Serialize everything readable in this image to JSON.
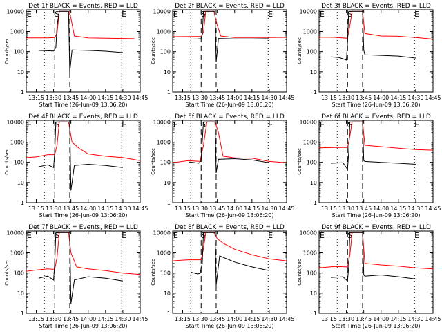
{
  "chart_data": [
    {
      "type": "line",
      "title": "Det 1f BLACK = Events, RED = LLD",
      "ylabel": "Counts/sec",
      "xlabel": "Start Time (26-Jun-09 13:06:20)",
      "x_ticks": [
        "13:15",
        "13:30",
        "13:45",
        "14:00",
        "14:15",
        "14:30",
        "14:45"
      ],
      "y_ticks": [
        "1",
        "10",
        "100",
        "1000",
        "10000"
      ],
      "y_scale": "log",
      "ylim": [
        1,
        12000
      ],
      "xlim": [
        "13:06:20",
        "14:45:00"
      ],
      "region_labels": [
        "E",
        "S",
        "E"
      ],
      "series": [
        {
          "color": "#ff0000",
          "x": [
            "13:06",
            "13:25",
            "13:31",
            "13:33",
            "13:35",
            "13:38",
            "13:42",
            "13:44",
            "13:48",
            "14:00",
            "14:15",
            "14:30",
            "14:40"
          ],
          "values": [
            480,
            480,
            500,
            800,
            10000,
            10000,
            10000,
            9000,
            600,
            480,
            460,
            450,
            440
          ]
        },
        {
          "color": "#000000",
          "x": [
            "13:17",
            "13:24",
            "13:30",
            "13:32",
            "13:33",
            "13:35",
            "13:43",
            "13:44",
            "13:46",
            "14:00",
            "14:15",
            "14:30"
          ],
          "values": [
            115,
            110,
            108,
            160,
            2000,
            10000,
            10000,
            9,
            120,
            115,
            105,
            90
          ]
        }
      ]
    },
    {
      "type": "line",
      "title": "Det 2f BLACK = Events, RED = LLD",
      "ylabel": "Counts/sec",
      "xlabel": "Start Time (26-Jun-09 13:06:20)",
      "x_ticks": [
        "13:15",
        "13:30",
        "13:45",
        "14:00",
        "14:15",
        "14:30",
        "14:45"
      ],
      "y_ticks": [
        "1",
        "10",
        "100",
        "1000",
        "10000"
      ],
      "y_scale": "log",
      "ylim": [
        1,
        12000
      ],
      "xlim": [
        "13:06:20",
        "14:45:00"
      ],
      "region_labels": [
        "E",
        "S",
        "E"
      ],
      "series": [
        {
          "color": "#ff0000",
          "x": [
            "13:06",
            "13:25",
            "13:31",
            "13:33",
            "13:35",
            "13:38",
            "13:42",
            "13:45",
            "13:48",
            "14:00",
            "14:15",
            "14:30",
            "14:45"
          ],
          "values": [
            550,
            560,
            570,
            900,
            10000,
            10000,
            10000,
            2000,
            600,
            500,
            500,
            500,
            510
          ]
        },
        {
          "color": "#000000",
          "x": [
            "13:22",
            "13:28",
            "13:31",
            "13:32",
            "13:33",
            "13:43",
            "13:44",
            "13:46",
            "14:00",
            "14:15",
            "14:30"
          ],
          "values": [
            420,
            430,
            440,
            700,
            10000,
            10000,
            30,
            450,
            430,
            430,
            440
          ]
        }
      ]
    },
    {
      "type": "line",
      "title": "Det 3f BLACK = Events, RED = LLD",
      "ylabel": "Counts/sec",
      "xlabel": "Start Time (26-Jun-09 13:06:20)",
      "x_ticks": [
        "13:15",
        "13:30",
        "13:45",
        "14:00",
        "14:15",
        "14:30",
        "14:45"
      ],
      "y_ticks": [
        "1",
        "10",
        "100",
        "1000",
        "10000"
      ],
      "y_scale": "log",
      "ylim": [
        1,
        12000
      ],
      "xlim": [
        "13:06:20",
        "14:45:00"
      ],
      "region_labels": [
        "E",
        "S",
        "E"
      ],
      "series": [
        {
          "color": "#ff0000",
          "x": [
            "13:06",
            "13:20",
            "13:31",
            "13:33",
            "13:35",
            "13:42",
            "13:44",
            "13:46",
            "14:00",
            "14:15",
            "14:30",
            "14:45"
          ],
          "values": [
            520,
            510,
            460,
            2000,
            10000,
            10000,
            10000,
            800,
            600,
            580,
            500,
            420
          ]
        },
        {
          "color": "#000000",
          "x": [
            "13:17",
            "13:24",
            "13:30",
            "13:31",
            "13:32",
            "13:44",
            "13:45",
            "13:46",
            "14:00",
            "14:15",
            "14:30"
          ],
          "values": [
            55,
            50,
            38,
            300,
            10000,
            10000,
            120,
            70,
            65,
            60,
            48
          ]
        }
      ]
    },
    {
      "type": "line",
      "title": "Det 4f BLACK = Events, RED = LLD",
      "ylabel": "Counts/sec",
      "xlabel": "Start Time (26-Jun-09 13:06:20)",
      "x_ticks": [
        "13:15",
        "13:30",
        "13:45",
        "14:00",
        "14:15",
        "14:30",
        "14:45"
      ],
      "y_ticks": [
        "1",
        "10",
        "100",
        "1000",
        "10000"
      ],
      "y_scale": "log",
      "ylim": [
        1,
        12000
      ],
      "xlim": [
        "13:06:20",
        "14:45:00"
      ],
      "region_labels": [
        "E",
        "S",
        "E"
      ],
      "series": [
        {
          "color": "#ff0000",
          "x": [
            "13:06",
            "13:15",
            "13:25",
            "13:31",
            "13:33",
            "13:35",
            "13:43",
            "13:46",
            "13:52",
            "14:00",
            "14:15",
            "14:30",
            "14:45"
          ],
          "values": [
            170,
            185,
            240,
            240,
            700,
            10000,
            10000,
            1000,
            500,
            260,
            200,
            170,
            120
          ]
        },
        {
          "color": "#000000",
          "x": [
            "13:17",
            "13:25",
            "13:30",
            "13:31",
            "13:32",
            "13:44",
            "13:45",
            "13:48",
            "14:00",
            "14:15",
            "14:30"
          ],
          "values": [
            60,
            75,
            55,
            300,
            10000,
            10000,
            4,
            70,
            80,
            70,
            55
          ]
        }
      ]
    },
    {
      "type": "line",
      "title": "Det 5f BLACK = Events, RED = LLD",
      "ylabel": "Counts/sec",
      "xlabel": "Start Time (26-Jun-09 13:06:20)",
      "x_ticks": [
        "13:15",
        "13:30",
        "13:45",
        "14:00",
        "14:15",
        "14:30",
        "14:45"
      ],
      "y_ticks": [
        "1",
        "10",
        "100",
        "1000",
        "10000"
      ],
      "y_scale": "log",
      "ylim": [
        1,
        12000
      ],
      "xlim": [
        "13:06:20",
        "14:45:00"
      ],
      "region_labels": [
        "E",
        "S",
        "E"
      ],
      "series": [
        {
          "color": "#ff0000",
          "x": [
            "13:06",
            "13:20",
            "13:30",
            "13:33",
            "13:36",
            "13:43",
            "13:46",
            "13:50",
            "14:00",
            "14:15",
            "14:30",
            "14:45"
          ],
          "values": [
            95,
            120,
            110,
            700,
            10000,
            10000,
            3000,
            200,
            165,
            160,
            110,
            95
          ]
        },
        {
          "color": "#000000",
          "x": [
            "13:20",
            "13:29",
            "13:31",
            "13:33",
            "13:43",
            "13:44",
            "13:46",
            "14:00",
            "14:15",
            "14:30"
          ],
          "values": [
            105,
            90,
            120,
            10000,
            10000,
            30,
            140,
            150,
            130,
            95
          ]
        }
      ]
    },
    {
      "type": "line",
      "title": "Det 6f BLACK = Events, RED = LLD",
      "ylabel": "Counts/sec",
      "xlabel": "Start Time (26-Jun-09 13:06:20)",
      "x_ticks": [
        "13:15",
        "13:30",
        "13:45",
        "14:00",
        "14:15",
        "14:30",
        "14:45"
      ],
      "y_ticks": [
        "1",
        "10",
        "100",
        "1000",
        "10000"
      ],
      "y_scale": "log",
      "ylim": [
        1,
        12000
      ],
      "xlim": [
        "13:06:20",
        "14:45:00"
      ],
      "region_labels": [
        "E",
        "S",
        "E"
      ],
      "series": [
        {
          "color": "#ff0000",
          "x": [
            "13:06",
            "13:20",
            "13:31",
            "13:33",
            "13:35",
            "13:42",
            "13:44",
            "13:46",
            "14:00",
            "14:15",
            "14:30",
            "14:45"
          ],
          "values": [
            520,
            540,
            540,
            2000,
            10000,
            10000,
            10000,
            700,
            600,
            500,
            430,
            400
          ]
        },
        {
          "color": "#000000",
          "x": [
            "13:17",
            "13:27",
            "13:31",
            "13:32",
            "13:33",
            "13:44",
            "13:45",
            "13:46",
            "14:00",
            "14:15",
            "14:30"
          ],
          "values": [
            90,
            95,
            45,
            300,
            10000,
            10000,
            120,
            110,
            100,
            90,
            80
          ]
        }
      ]
    },
    {
      "type": "line",
      "title": "Det 7f BLACK = Events, RED = LLD",
      "ylabel": "Counts/sec",
      "xlabel": "Start Time (26-Jun-09 13:06:20)",
      "x_ticks": [
        "13:15",
        "13:30",
        "13:45",
        "14:00",
        "14:15",
        "14:30",
        "14:45"
      ],
      "y_ticks": [
        "1",
        "10",
        "100",
        "1000",
        "10000"
      ],
      "y_scale": "log",
      "ylim": [
        1,
        12000
      ],
      "xlim": [
        "13:06:20",
        "14:45:00"
      ],
      "region_labels": [
        "E",
        "S",
        "E"
      ],
      "series": [
        {
          "color": "#ff0000",
          "x": [
            "13:06",
            "13:15",
            "13:25",
            "13:31",
            "13:33",
            "13:35",
            "13:43",
            "13:45",
            "13:50",
            "14:00",
            "14:15",
            "14:30",
            "14:45"
          ],
          "values": [
            120,
            140,
            160,
            150,
            600,
            10000,
            10000,
            1000,
            200,
            160,
            130,
            100,
            85
          ]
        },
        {
          "color": "#000000",
          "x": [
            "13:17",
            "13:25",
            "13:30",
            "13:31",
            "13:32",
            "13:44",
            "13:45",
            "13:48",
            "14:00",
            "14:15",
            "14:30"
          ],
          "values": [
            55,
            70,
            45,
            300,
            10000,
            10000,
            3,
            45,
            65,
            55,
            40
          ]
        }
      ]
    },
    {
      "type": "line",
      "title": "Det 8f BLACK = Events, RED = LLD",
      "ylabel": "Counts/sec",
      "xlabel": "Start Time (26-Jun-09 13:06:20)",
      "x_ticks": [
        "13:15",
        "13:30",
        "13:45",
        "14:00",
        "14:15",
        "14:30",
        "14:45"
      ],
      "y_ticks": [
        "1",
        "10",
        "100",
        "1000",
        "10000"
      ],
      "y_scale": "log",
      "ylim": [
        1,
        12000
      ],
      "xlim": [
        "13:06:20",
        "14:45:00"
      ],
      "region_labels": [
        "E",
        "S",
        "E"
      ],
      "series": [
        {
          "color": "#ff0000",
          "x": [
            "13:06",
            "13:20",
            "13:31",
            "13:33",
            "13:35",
            "13:42",
            "13:45",
            "13:50",
            "14:00",
            "14:15",
            "14:30",
            "14:45"
          ],
          "values": [
            400,
            450,
            450,
            1500,
            10000,
            10000,
            5000,
            3000,
            1500,
            800,
            500,
            400
          ]
        },
        {
          "color": "#000000",
          "x": [
            "13:22",
            "13:28",
            "13:30",
            "13:32",
            "13:33",
            "13:43",
            "13:44",
            "13:47",
            "14:00",
            "14:15",
            "14:30"
          ],
          "values": [
            110,
            90,
            95,
            300,
            10000,
            10000,
            25,
            700,
            350,
            200,
            130
          ]
        }
      ]
    },
    {
      "type": "line",
      "title": "Det 9f BLACK = Events, RED = LLD",
      "ylabel": "Counts/sec",
      "xlabel": "Start Time (26-Jun-09 13:06:20)",
      "x_ticks": [
        "13:15",
        "13:30",
        "13:45",
        "14:00",
        "14:15",
        "14:30",
        "14:45"
      ],
      "y_ticks": [
        "1",
        "10",
        "100",
        "1000",
        "10000"
      ],
      "y_scale": "log",
      "ylim": [
        1,
        12000
      ],
      "xlim": [
        "13:06:20",
        "14:45:00"
      ],
      "region_labels": [
        "E",
        "S",
        "E"
      ],
      "series": [
        {
          "color": "#ff0000",
          "x": [
            "13:06",
            "13:20",
            "13:31",
            "13:33",
            "13:35",
            "13:42",
            "13:44",
            "13:46",
            "14:00",
            "14:15",
            "14:30",
            "14:45"
          ],
          "values": [
            180,
            210,
            200,
            800,
            10000,
            10000,
            10000,
            300,
            250,
            220,
            180,
            160
          ]
        },
        {
          "color": "#000000",
          "x": [
            "13:17",
            "13:27",
            "13:31",
            "13:32",
            "13:33",
            "13:44",
            "13:45",
            "13:46",
            "14:00",
            "14:15",
            "14:30"
          ],
          "values": [
            60,
            65,
            40,
            200,
            10000,
            10000,
            80,
            70,
            80,
            65,
            50
          ]
        }
      ]
    }
  ]
}
